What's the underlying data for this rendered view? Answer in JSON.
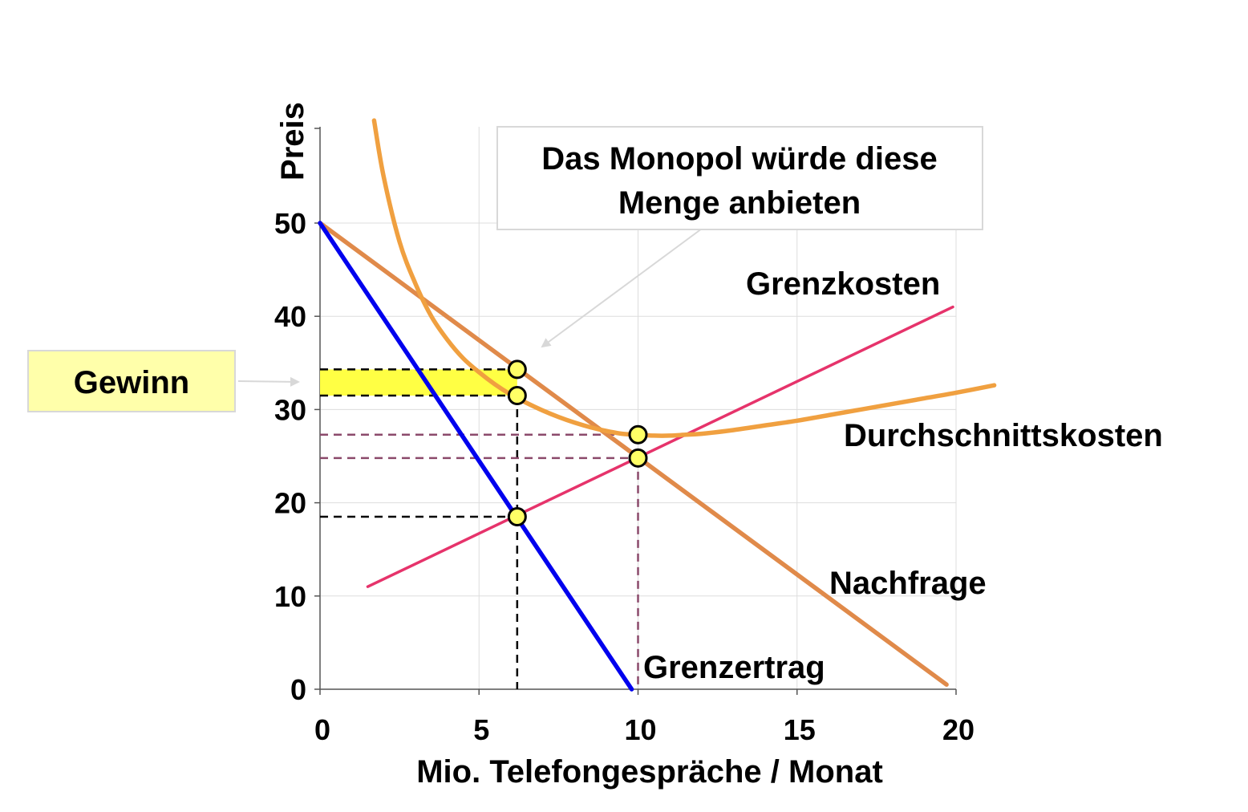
{
  "chart_data": {
    "type": "line",
    "xlabel": "Mio. Telefongespräche / Monat",
    "ylabel": "Preis",
    "xlim": [
      0,
      20
    ],
    "ylim": [
      0,
      50
    ],
    "x_ticks": [
      "0",
      "5",
      "10",
      "15",
      "20"
    ],
    "y_ticks": [
      "0",
      "10",
      "20",
      "30",
      "40",
      "50"
    ],
    "grid": true,
    "colors": {
      "demand": "#E08A4A",
      "marginal_revenue": "#0000EE",
      "marginal_cost": "#E6336B",
      "average_cost": "#F0A040",
      "profit_fill": "#FFFF44",
      "point_fill": "#FFFF66",
      "guide_black": "#000000",
      "guide_purple": "#8B4A6B",
      "callout_box_bg": "#FFFFFF",
      "gewinn_box_bg": "#FFFFAA"
    },
    "series": [
      {
        "name": "Nachfrage",
        "x": [
          0,
          19.7
        ],
        "y": [
          50,
          0.5
        ]
      },
      {
        "name": "Grenzertrag",
        "x": [
          0,
          9.8
        ],
        "y": [
          50,
          0
        ]
      },
      {
        "name": "Grenzkosten",
        "x": [
          1.5,
          19.9
        ],
        "y": [
          11,
          41
        ]
      },
      {
        "name": "Durchschnittskosten",
        "x": [
          1.7,
          2.0,
          2.5,
          3.0,
          3.5,
          4.0,
          4.5,
          5.0,
          5.5,
          6.0,
          6.5,
          7.0,
          7.5,
          8.0,
          8.5,
          9.0,
          9.5,
          10.0,
          10.5,
          11.0,
          11.5,
          12.0,
          13.0,
          14.0,
          15.0,
          16.0,
          17.0,
          18.0,
          19.0,
          20.0,
          21.2
        ],
        "y": [
          61.0,
          55.0,
          48.0,
          43.5,
          40.0,
          37.5,
          35.5,
          34.0,
          32.7,
          31.6,
          30.7,
          29.9,
          29.2,
          28.6,
          28.1,
          27.7,
          27.4,
          27.3,
          27.2,
          27.2,
          27.3,
          27.4,
          27.8,
          28.3,
          28.8,
          29.4,
          30.0,
          30.6,
          31.2,
          31.8,
          32.6
        ]
      }
    ],
    "points": [
      {
        "x": 6.2,
        "y": 34.3
      },
      {
        "x": 6.2,
        "y": 31.5
      },
      {
        "x": 6.2,
        "y": 18.5
      },
      {
        "x": 10.0,
        "y": 27.3
      },
      {
        "x": 10.0,
        "y": 24.8
      }
    ],
    "profit_area": {
      "x0": 0,
      "x1": 6.2,
      "y0": 31.5,
      "y1": 34.3
    },
    "guide_lines": [
      {
        "style": "black",
        "x0": 0,
        "y0": 34.3,
        "x1": 6.2,
        "y1": 34.3
      },
      {
        "style": "black",
        "x0": 0,
        "y0": 31.5,
        "x1": 6.2,
        "y1": 31.5
      },
      {
        "style": "black",
        "x0": 0,
        "y0": 18.5,
        "x1": 6.2,
        "y1": 18.5
      },
      {
        "style": "black",
        "x0": 6.2,
        "y0": 31.5,
        "x1": 6.2,
        "y1": 0
      },
      {
        "style": "purple",
        "x0": 0,
        "y0": 27.3,
        "x1": 10.0,
        "y1": 27.3
      },
      {
        "style": "purple",
        "x0": 0,
        "y0": 24.8,
        "x1": 10.0,
        "y1": 24.8
      },
      {
        "style": "purple",
        "x0": 10.0,
        "y0": 24.8,
        "x1": 10.0,
        "y1": 0
      }
    ],
    "annotations": {
      "callout_line1": "Das Monopol würde diese",
      "callout_line2": "Menge anbieten",
      "gewinn": "Gewinn"
    }
  }
}
